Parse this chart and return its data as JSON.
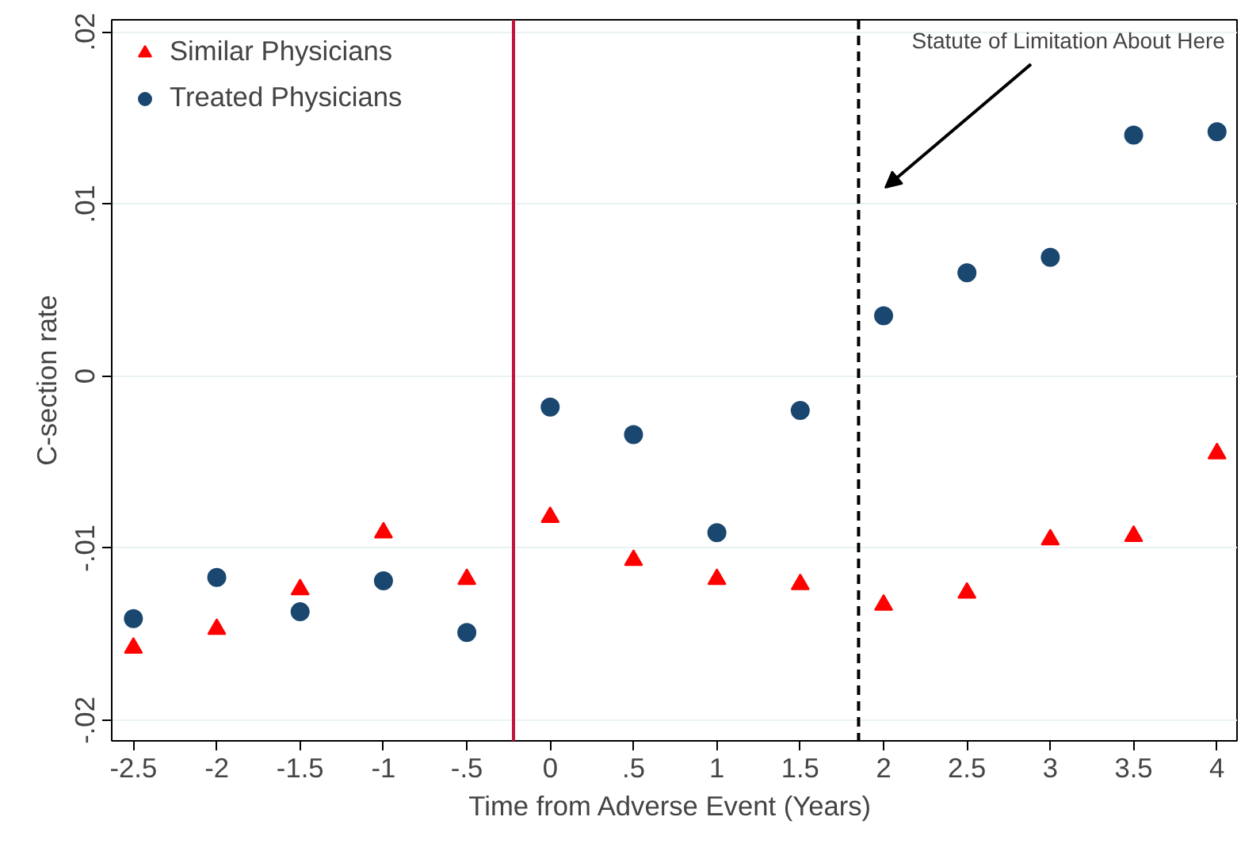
{
  "chart_data": {
    "type": "scatter",
    "xlabel": "Time from  Adverse Event (Years)",
    "ylabel": "C-section rate",
    "x": [
      -2.5,
      -2,
      -1.5,
      -1,
      -0.5,
      0,
      0.5,
      1,
      1.5,
      2,
      2.5,
      3,
      3.5,
      4
    ],
    "series": [
      {
        "name": "Similar Physicians",
        "color": "#ff0000",
        "marker": "triangle",
        "values": [
          -0.0158,
          -0.0147,
          -0.0124,
          -0.0091,
          -0.0118,
          -0.0082,
          -0.0107,
          -0.0118,
          -0.0121,
          -0.0133,
          -0.0126,
          -0.0095,
          -0.0093,
          -0.0045
        ]
      },
      {
        "name": "Treated Physicians",
        "color": "#1a476f",
        "marker": "circle",
        "values": [
          -0.0141,
          -0.0117,
          -0.0137,
          -0.0119,
          -0.0149,
          -0.0018,
          -0.0034,
          -0.0091,
          -0.002,
          0.0035,
          0.006,
          0.0069,
          0.014,
          0.0142
        ]
      }
    ],
    "xlim": [
      -2.63,
      4.12
    ],
    "ylim": [
      -0.0212,
      0.0207
    ],
    "xticks": [
      {
        "value": -2.5,
        "label": "-2.5"
      },
      {
        "value": -2,
        "label": "-2"
      },
      {
        "value": -1.5,
        "label": "-1.5"
      },
      {
        "value": -1,
        "label": "-1"
      },
      {
        "value": -0.5,
        "label": "-.5"
      },
      {
        "value": 0,
        "label": "0"
      },
      {
        "value": 0.5,
        "label": ".5"
      },
      {
        "value": 1,
        "label": "1"
      },
      {
        "value": 1.5,
        "label": "1.5"
      },
      {
        "value": 2,
        "label": "2"
      },
      {
        "value": 2.5,
        "label": "2.5"
      },
      {
        "value": 3,
        "label": "3"
      },
      {
        "value": 3.5,
        "label": "3.5"
      },
      {
        "value": 4,
        "label": "4"
      }
    ],
    "yticks": [
      {
        "value": -0.02,
        "label": "-.02"
      },
      {
        "value": -0.01,
        "label": "-.01"
      },
      {
        "value": 0,
        "label": "0"
      },
      {
        "value": 0.01,
        "label": ".01"
      },
      {
        "value": 0.02,
        "label": ".02"
      }
    ],
    "ref_lines": [
      {
        "axis": "x",
        "value": -0.22,
        "color": "#c0143c",
        "line_style": "solid"
      },
      {
        "axis": "x",
        "value": 1.85,
        "color": "#000000",
        "line_style": "dashed"
      }
    ],
    "annotations": [
      "Statute of Limitation About Here"
    ],
    "grid": "y",
    "legend": "top left"
  }
}
